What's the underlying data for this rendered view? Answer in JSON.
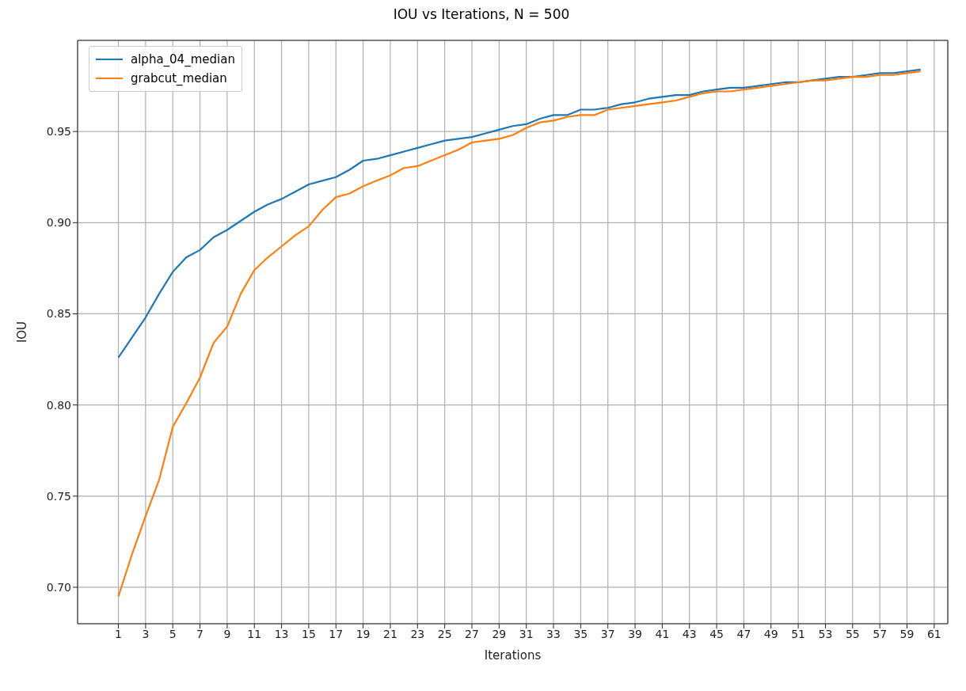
{
  "chart_data": {
    "type": "line",
    "title": "IOU vs Iterations, N = 500",
    "xlabel": "Iterations",
    "ylabel": "IOU",
    "x": [
      1,
      2,
      3,
      4,
      5,
      6,
      7,
      8,
      9,
      10,
      11,
      12,
      13,
      14,
      15,
      16,
      17,
      18,
      19,
      20,
      21,
      22,
      23,
      24,
      25,
      26,
      27,
      28,
      29,
      30,
      31,
      32,
      33,
      34,
      35,
      36,
      37,
      38,
      39,
      40,
      41,
      42,
      43,
      44,
      45,
      46,
      47,
      48,
      49,
      50,
      51,
      52,
      53,
      54,
      55,
      56,
      57,
      58,
      59,
      60
    ],
    "series": [
      {
        "name": "alpha_04_median",
        "color": "#1f77b4",
        "values": [
          0.826,
          0.837,
          0.848,
          0.861,
          0.873,
          0.881,
          0.885,
          0.892,
          0.896,
          0.901,
          0.906,
          0.91,
          0.913,
          0.917,
          0.921,
          0.923,
          0.925,
          0.929,
          0.934,
          0.935,
          0.937,
          0.939,
          0.941,
          0.943,
          0.945,
          0.946,
          0.947,
          0.949,
          0.951,
          0.953,
          0.954,
          0.957,
          0.959,
          0.959,
          0.962,
          0.962,
          0.963,
          0.965,
          0.966,
          0.968,
          0.969,
          0.97,
          0.97,
          0.972,
          0.973,
          0.974,
          0.974,
          0.975,
          0.976,
          0.977,
          0.977,
          0.978,
          0.979,
          0.98,
          0.98,
          0.981,
          0.982,
          0.982,
          0.983,
          0.984
        ]
      },
      {
        "name": "grabcut_median",
        "color": "#ff7f0e",
        "values": [
          0.695,
          0.718,
          0.739,
          0.759,
          0.788,
          0.801,
          0.815,
          0.834,
          0.843,
          0.861,
          0.874,
          0.881,
          0.887,
          0.893,
          0.898,
          0.907,
          0.914,
          0.916,
          0.92,
          0.923,
          0.926,
          0.93,
          0.931,
          0.934,
          0.937,
          0.94,
          0.944,
          0.945,
          0.946,
          0.948,
          0.952,
          0.955,
          0.956,
          0.958,
          0.959,
          0.959,
          0.962,
          0.963,
          0.964,
          0.965,
          0.966,
          0.967,
          0.969,
          0.971,
          0.972,
          0.972,
          0.973,
          0.974,
          0.975,
          0.976,
          0.977,
          0.978,
          0.978,
          0.979,
          0.98,
          0.98,
          0.981,
          0.981,
          0.982,
          0.983
        ]
      }
    ],
    "xlim": [
      -2,
      62
    ],
    "xticks": [
      1,
      3,
      5,
      7,
      9,
      11,
      13,
      15,
      17,
      19,
      21,
      23,
      25,
      27,
      29,
      31,
      33,
      35,
      37,
      39,
      41,
      43,
      45,
      47,
      49,
      51,
      53,
      55,
      57,
      59,
      61
    ],
    "ylim": [
      0.68,
      1.0
    ],
    "yticks": [
      {
        "value": 0.7,
        "label": "0.70"
      },
      {
        "value": 0.75,
        "label": "0.75"
      },
      {
        "value": 0.8,
        "label": "0.80"
      },
      {
        "value": 0.85,
        "label": "0.85"
      },
      {
        "value": 0.9,
        "label": "0.90"
      },
      {
        "value": 0.95,
        "label": "0.95"
      }
    ],
    "grid": true,
    "legend": "top left",
    "marker": "none",
    "line_style": "solid"
  }
}
